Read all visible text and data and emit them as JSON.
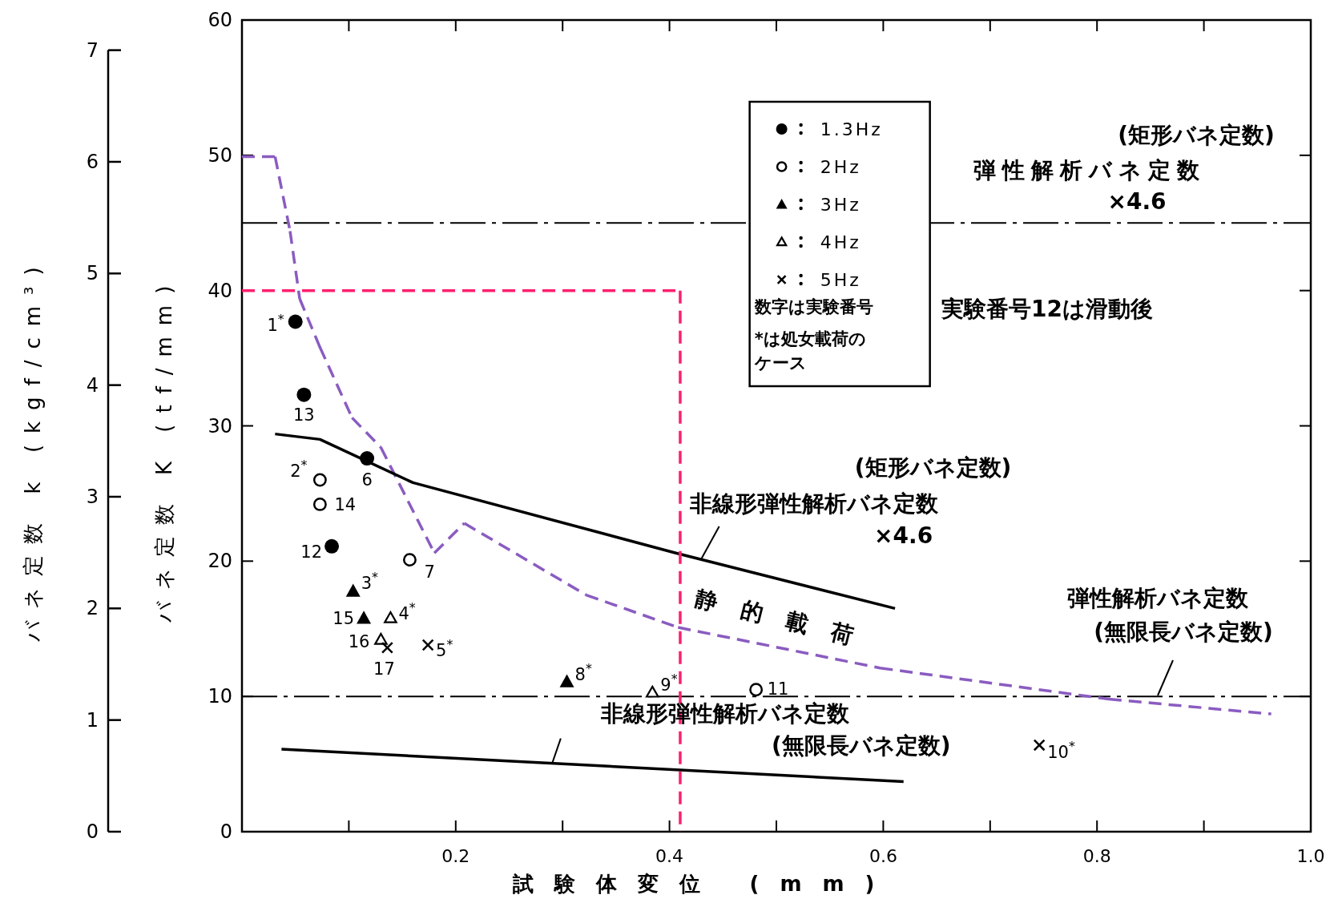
{
  "chart_data": {
    "type": "scatter",
    "xlabel": "試験体変位 (mm)",
    "ylabel": "バネ定数 K (tf/mm)",
    "y2label": "バネ定数 k (kgf/cm³)",
    "xlim": [
      0,
      1.0
    ],
    "xticks": [
      {
        "value": 0.1,
        "label": null
      },
      0.2,
      {
        "value": 0.3,
        "label": null
      },
      0.4,
      {
        "value": 0.5,
        "label": null
      },
      0.6,
      {
        "value": 0.7,
        "label": null
      },
      0.8,
      {
        "value": 0.9,
        "label": null
      },
      {
        "value": 1.0,
        "label": "1.0"
      }
    ],
    "ylim": [
      0,
      60
    ],
    "yticks": [
      0,
      10,
      20,
      30,
      40,
      50,
      60
    ],
    "y2lim": [
      0,
      7.27
    ],
    "y2ticks": [
      0,
      1,
      2,
      3,
      4,
      5,
      6,
      7
    ],
    "legend": "top",
    "series": [
      {
        "name": "1.3Hz",
        "type": "scatter",
        "marker": "circle",
        "color": "#000000",
        "x": [
          0.05,
          0.058,
          0.117,
          0.084
        ],
        "values": [
          37.7,
          32.3,
          27.6,
          21.1
        ]
      },
      {
        "name": "2Hz",
        "type": "scatter",
        "marker": "circle-open",
        "color": "#000000",
        "x": [
          0.073,
          0.073,
          0.157,
          0.481
        ],
        "values": [
          26.0,
          24.2,
          20.1,
          10.5
        ]
      },
      {
        "name": "3Hz",
        "type": "scatter",
        "marker": "triangle",
        "color": "#000000",
        "x": [
          0.104,
          0.114,
          0.304
        ],
        "values": [
          17.8,
          15.8,
          11.1
        ]
      },
      {
        "name": "4Hz",
        "type": "scatter",
        "marker": "triangle-open",
        "color": "#000000",
        "x": [
          0.139,
          0.13,
          0.384
        ],
        "values": [
          15.8,
          14.2,
          10.3
        ]
      },
      {
        "name": "5Hz",
        "type": "scatter",
        "marker": "cross",
        "color": "#000000",
        "x": [
          0.174,
          0.136,
          0.746
        ],
        "values": [
          13.8,
          13.6,
          6.4
        ]
      },
      {
        "type": "line",
        "color": "#8a5cc0",
        "line_style": "dashed",
        "x": [
          0,
          0.031,
          0.045,
          0.054,
          0.073,
          0.103,
          0.13,
          0.18,
          0.208,
          0.322,
          0.408,
          0.597,
          0.811,
          0.963
        ],
        "values": [
          49.9,
          49.9,
          44.4,
          39.4,
          35.8,
          30.6,
          28.4,
          20.6,
          22.8,
          17.5,
          15.1,
          12.1,
          9.8,
          8.7
        ]
      },
      {
        "type": "line",
        "color": "#000000",
        "line_style": "solid",
        "x": [
          0.031,
          0.073,
          0.16,
          0.406,
          0.611
        ],
        "values": [
          29.4,
          29.0,
          25.8,
          20.6,
          16.5
        ]
      },
      {
        "type": "line",
        "color": "#000000",
        "line_style": "solid",
        "x": [
          0.037,
          0.619
        ],
        "values": [
          6.1,
          3.7
        ]
      },
      {
        "type": "line",
        "color": "#ff1f6e",
        "line_style": "dashed",
        "x": [
          0,
          0.41,
          0.41
        ],
        "values": [
          40,
          40,
          0
        ]
      }
    ],
    "ref_lines": [
      {
        "axis": "y",
        "value": 45,
        "label": "(矩形バネ定数)\n弾性解析バネ定数\n×4.6",
        "color": "#000000",
        "line_style": "dashdot"
      },
      {
        "axis": "y",
        "value": 10,
        "label": "弾性解析バネ定数\n(無限長バネ定数)",
        "color": "#000000",
        "line_style": "dashdot"
      }
    ],
    "annotations": [
      "数字は実験番号",
      "*は処女載荷のケース",
      "実験番号12は滑動後",
      {
        "text": "(矩形バネ定数)\n非線形弾性解析バネ定数\n×4.6",
        "x": 0.43,
        "y": 20.2
      },
      {
        "text": "静的載荷",
        "x": 0.5,
        "y": 13.6
      },
      {
        "text": "非線形弾性解析バネ定数\n(無限長バネ定数)",
        "x": 0.29,
        "y": 5.0
      },
      {
        "text": "1$^{*}$",
        "x": 0.05,
        "y": 37.7
      },
      {
        "text": "13",
        "x": 0.058,
        "y": 32.3
      },
      {
        "text": "6",
        "x": 0.117,
        "y": 27.6
      },
      {
        "text": "12",
        "x": 0.084,
        "y": 21.1
      },
      {
        "text": "2$^{*}$",
        "x": 0.073,
        "y": 26.0
      },
      {
        "text": "14",
        "x": 0.073,
        "y": 24.2
      },
      {
        "text": "7",
        "x": 0.157,
        "y": 20.1
      },
      {
        "text": "11",
        "x": 0.481,
        "y": 10.5
      },
      {
        "text": "3$^{*}$",
        "x": 0.104,
        "y": 17.8
      },
      {
        "text": "15",
        "x": 0.114,
        "y": 15.8
      },
      {
        "text": "8$^{*}$",
        "x": 0.304,
        "y": 11.1
      },
      {
        "text": "4$^{*}$",
        "x": 0.139,
        "y": 15.8
      },
      {
        "text": "16",
        "x": 0.13,
        "y": 14.2
      },
      {
        "text": "9$^{*}$",
        "x": 0.384,
        "y": 10.3
      },
      {
        "text": "5$^{*}$",
        "x": 0.174,
        "y": 13.8
      },
      {
        "text": "17",
        "x": 0.136,
        "y": 13.6
      },
      {
        "text": "10$^{*}$",
        "x": 0.746,
        "y": 6.4
      }
    ]
  }
}
